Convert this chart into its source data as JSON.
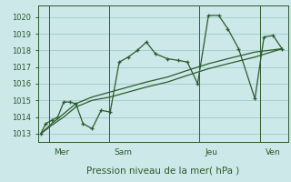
{
  "background_color": "#cce8e8",
  "grid_color": "#99cccc",
  "line_color": "#2d5a2d",
  "marker_color": "#2d5a2d",
  "xlabel": "Pression niveau de la mer( hPa )",
  "ylim": [
    1012.5,
    1020.7
  ],
  "yticks": [
    1013,
    1014,
    1015,
    1016,
    1017,
    1018,
    1019,
    1020
  ],
  "day_labels": [
    "Mer",
    "Sam",
    "Jeu",
    "Ven"
  ],
  "day_positions": [
    0.22,
    1.22,
    2.72,
    3.72
  ],
  "day_lines": [
    0.13,
    1.13,
    2.63,
    3.63
  ],
  "xlim": [
    -0.05,
    4.1
  ],
  "series": [
    {
      "x": [
        0.0,
        0.08,
        0.18,
        0.28,
        0.38,
        0.48,
        0.58,
        0.7,
        0.85,
        1.0,
        1.15,
        1.3,
        1.45,
        1.6,
        1.75,
        1.9,
        2.1,
        2.28,
        2.43,
        2.6,
        2.78,
        2.95,
        3.1,
        3.28,
        3.55,
        3.7,
        3.85,
        4.0
      ],
      "y": [
        1013.0,
        1013.6,
        1013.8,
        1014.0,
        1014.9,
        1014.9,
        1014.8,
        1013.6,
        1013.3,
        1014.4,
        1014.3,
        1017.3,
        1017.6,
        1018.0,
        1018.5,
        1017.8,
        1017.5,
        1017.4,
        1017.3,
        1016.0,
        1020.1,
        1020.1,
        1019.3,
        1018.1,
        1015.1,
        1018.8,
        1018.9,
        1018.1
      ]
    },
    {
      "x": [
        0.0,
        0.18,
        0.38,
        0.58,
        0.85,
        1.15,
        1.45,
        1.75,
        2.1,
        2.43,
        2.78,
        3.1,
        3.55,
        4.0
      ],
      "y": [
        1013.0,
        1013.5,
        1014.0,
        1014.6,
        1015.0,
        1015.2,
        1015.5,
        1015.8,
        1016.1,
        1016.5,
        1016.9,
        1017.2,
        1017.6,
        1018.1
      ]
    },
    {
      "x": [
        0.0,
        0.18,
        0.38,
        0.58,
        0.85,
        1.15,
        1.45,
        1.75,
        2.1,
        2.43,
        2.78,
        3.1,
        3.55,
        4.0
      ],
      "y": [
        1013.0,
        1013.6,
        1014.2,
        1014.8,
        1015.2,
        1015.5,
        1015.8,
        1016.1,
        1016.4,
        1016.8,
        1017.2,
        1017.5,
        1017.9,
        1018.1
      ]
    }
  ]
}
